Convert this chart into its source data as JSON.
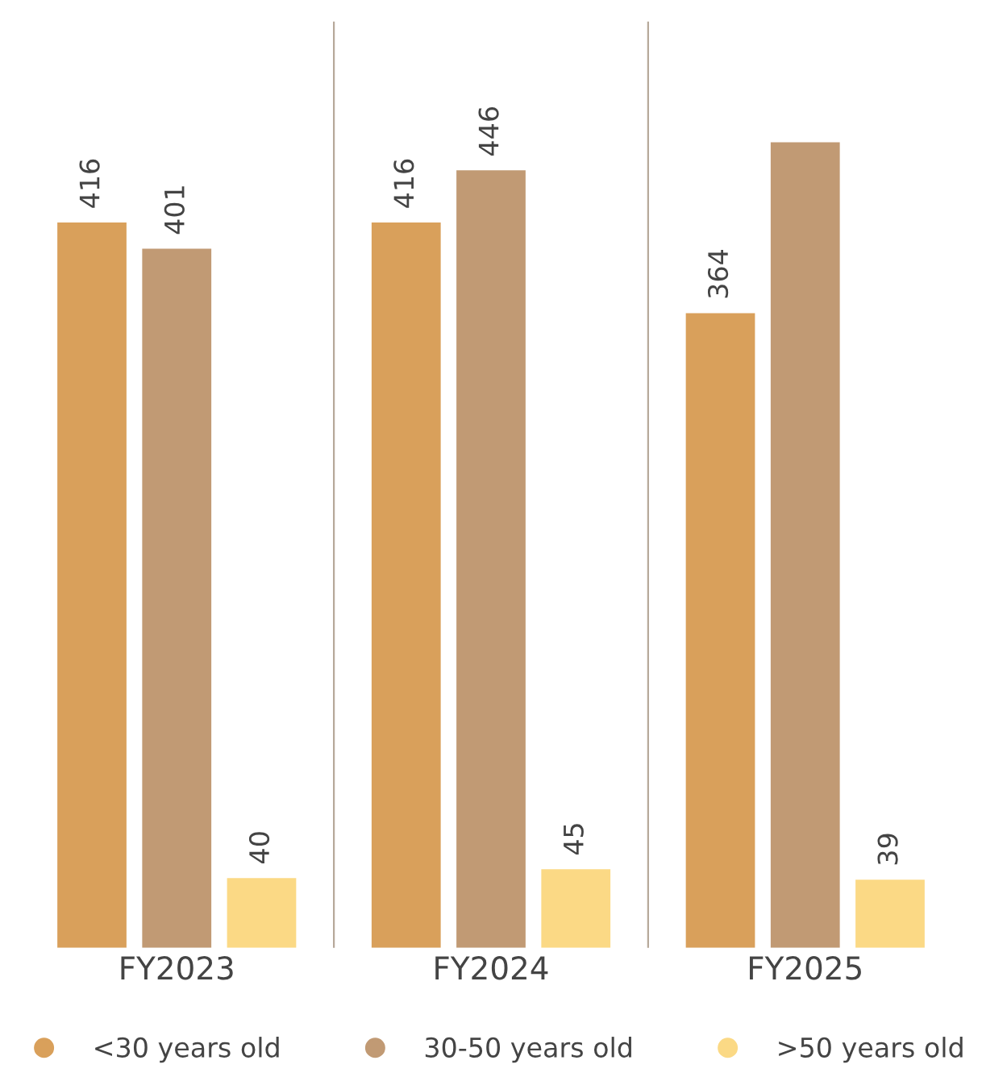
{
  "chart_data": {
    "type": "bar",
    "categories": [
      "FY2023",
      "FY2024",
      "FY2025"
    ],
    "series": [
      {
        "name": "<30 years old",
        "color": "#d9a05b",
        "values": [
          416,
          416,
          364
        ],
        "value_labels": [
          "416",
          "416",
          "364"
        ]
      },
      {
        "name": "30-50 years old",
        "color": "#c19a74",
        "values": [
          401,
          446,
          462
        ],
        "value_labels": [
          "401",
          "446",
          null
        ]
      },
      {
        "name": ">50 years old",
        "color": "#fbd985",
        "values": [
          40,
          45,
          39
        ],
        "value_labels": [
          "40",
          "45",
          "39"
        ]
      }
    ],
    "legend": "bottom",
    "grid": false,
    "tick_labels": "x"
  }
}
